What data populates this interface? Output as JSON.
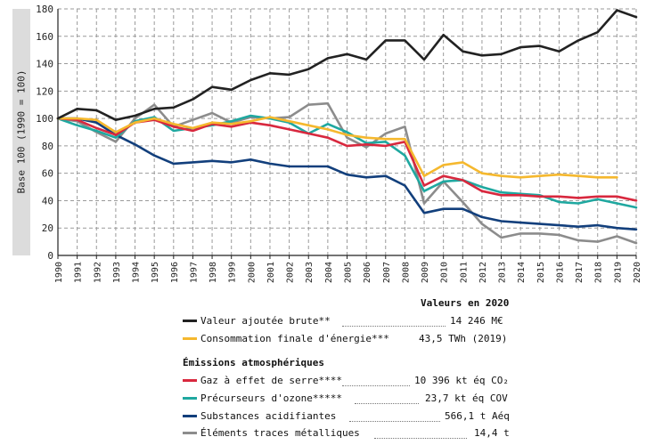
{
  "chart_data": {
    "type": "line",
    "ylabel": "Base 100 (1990 = 100)",
    "ylim": [
      0,
      180
    ],
    "yticks": [
      0,
      20,
      40,
      60,
      80,
      100,
      120,
      140,
      160,
      180
    ],
    "x": [
      "1990",
      "1991",
      "1992",
      "1993",
      "1994",
      "1995",
      "1996",
      "1997",
      "1998",
      "1999",
      "2000",
      "2001",
      "2002",
      "2003",
      "2004",
      "2005",
      "2006",
      "2007",
      "2008",
      "2009",
      "2010",
      "2011",
      "2012",
      "2013",
      "2014",
      "2015",
      "2016",
      "2017",
      "2018",
      "2019",
      "2020"
    ],
    "series": [
      {
        "key": "valeur",
        "name": "Valeur ajoutée brute**",
        "value_2020": "14 246 M€",
        "color": "#222222",
        "values": [
          100,
          107,
          106,
          99,
          102,
          107,
          108,
          114,
          123,
          121,
          128,
          133,
          132,
          136,
          144,
          147,
          143,
          157,
          157,
          143,
          161,
          149,
          146,
          147,
          152,
          153,
          149,
          157,
          163,
          179,
          174
        ]
      },
      {
        "key": "conso",
        "name": "Consommation finale d'énergie***",
        "value_2020": "43,5 TWh (2019)",
        "color": "#f5b82e",
        "values": [
          100,
          100,
          99,
          90,
          97,
          100,
          96,
          93,
          97,
          96,
          98,
          101,
          98,
          95,
          92,
          88,
          86,
          85,
          85,
          58,
          66,
          68,
          60,
          58,
          57,
          58,
          59,
          58,
          57,
          57,
          null
        ]
      },
      {
        "key": "ges",
        "name": "Gaz à effet de serre****",
        "value_2020": "10 396 kt éq CO₂",
        "color": "#d8283e",
        "values": [
          100,
          99,
          93,
          88,
          97,
          99,
          94,
          91,
          96,
          94,
          97,
          95,
          92,
          89,
          86,
          80,
          81,
          80,
          83,
          51,
          58,
          55,
          47,
          44,
          44,
          43,
          43,
          42,
          43,
          43,
          40
        ]
      },
      {
        "key": "ozone",
        "name": "Précurseurs d'ozone*****",
        "value_2020": "23,7 kt éq COV",
        "color": "#1fa8a0",
        "values": [
          100,
          95,
          91,
          86,
          98,
          101,
          91,
          93,
          95,
          98,
          102,
          100,
          97,
          89,
          96,
          90,
          82,
          83,
          73,
          47,
          54,
          55,
          50,
          46,
          45,
          44,
          39,
          38,
          41,
          38,
          35
        ]
      },
      {
        "key": "acid",
        "name": "Substances acidifiantes",
        "value_2020": "566,1 t Aéq",
        "color": "#123f7c",
        "values": [
          100,
          100,
          97,
          88,
          81,
          73,
          67,
          68,
          69,
          68,
          70,
          67,
          65,
          65,
          65,
          59,
          57,
          58,
          51,
          31,
          34,
          34,
          28,
          25,
          24,
          23,
          22,
          21,
          22,
          20,
          19
        ]
      },
      {
        "key": "etm",
        "name": "Éléments traces métalliques",
        "value_2020": "14,4 t",
        "color": "#8c8c8c",
        "values": [
          100,
          98,
          90,
          83,
          100,
          110,
          94,
          99,
          104,
          97,
          101,
          100,
          101,
          110,
          111,
          86,
          79,
          89,
          94,
          38,
          54,
          39,
          23,
          13,
          16,
          16,
          15,
          11,
          10,
          14,
          9
        ]
      }
    ]
  },
  "legend": {
    "header": "Valeurs en 2020",
    "section_title": "Émissions atmosphériques"
  }
}
